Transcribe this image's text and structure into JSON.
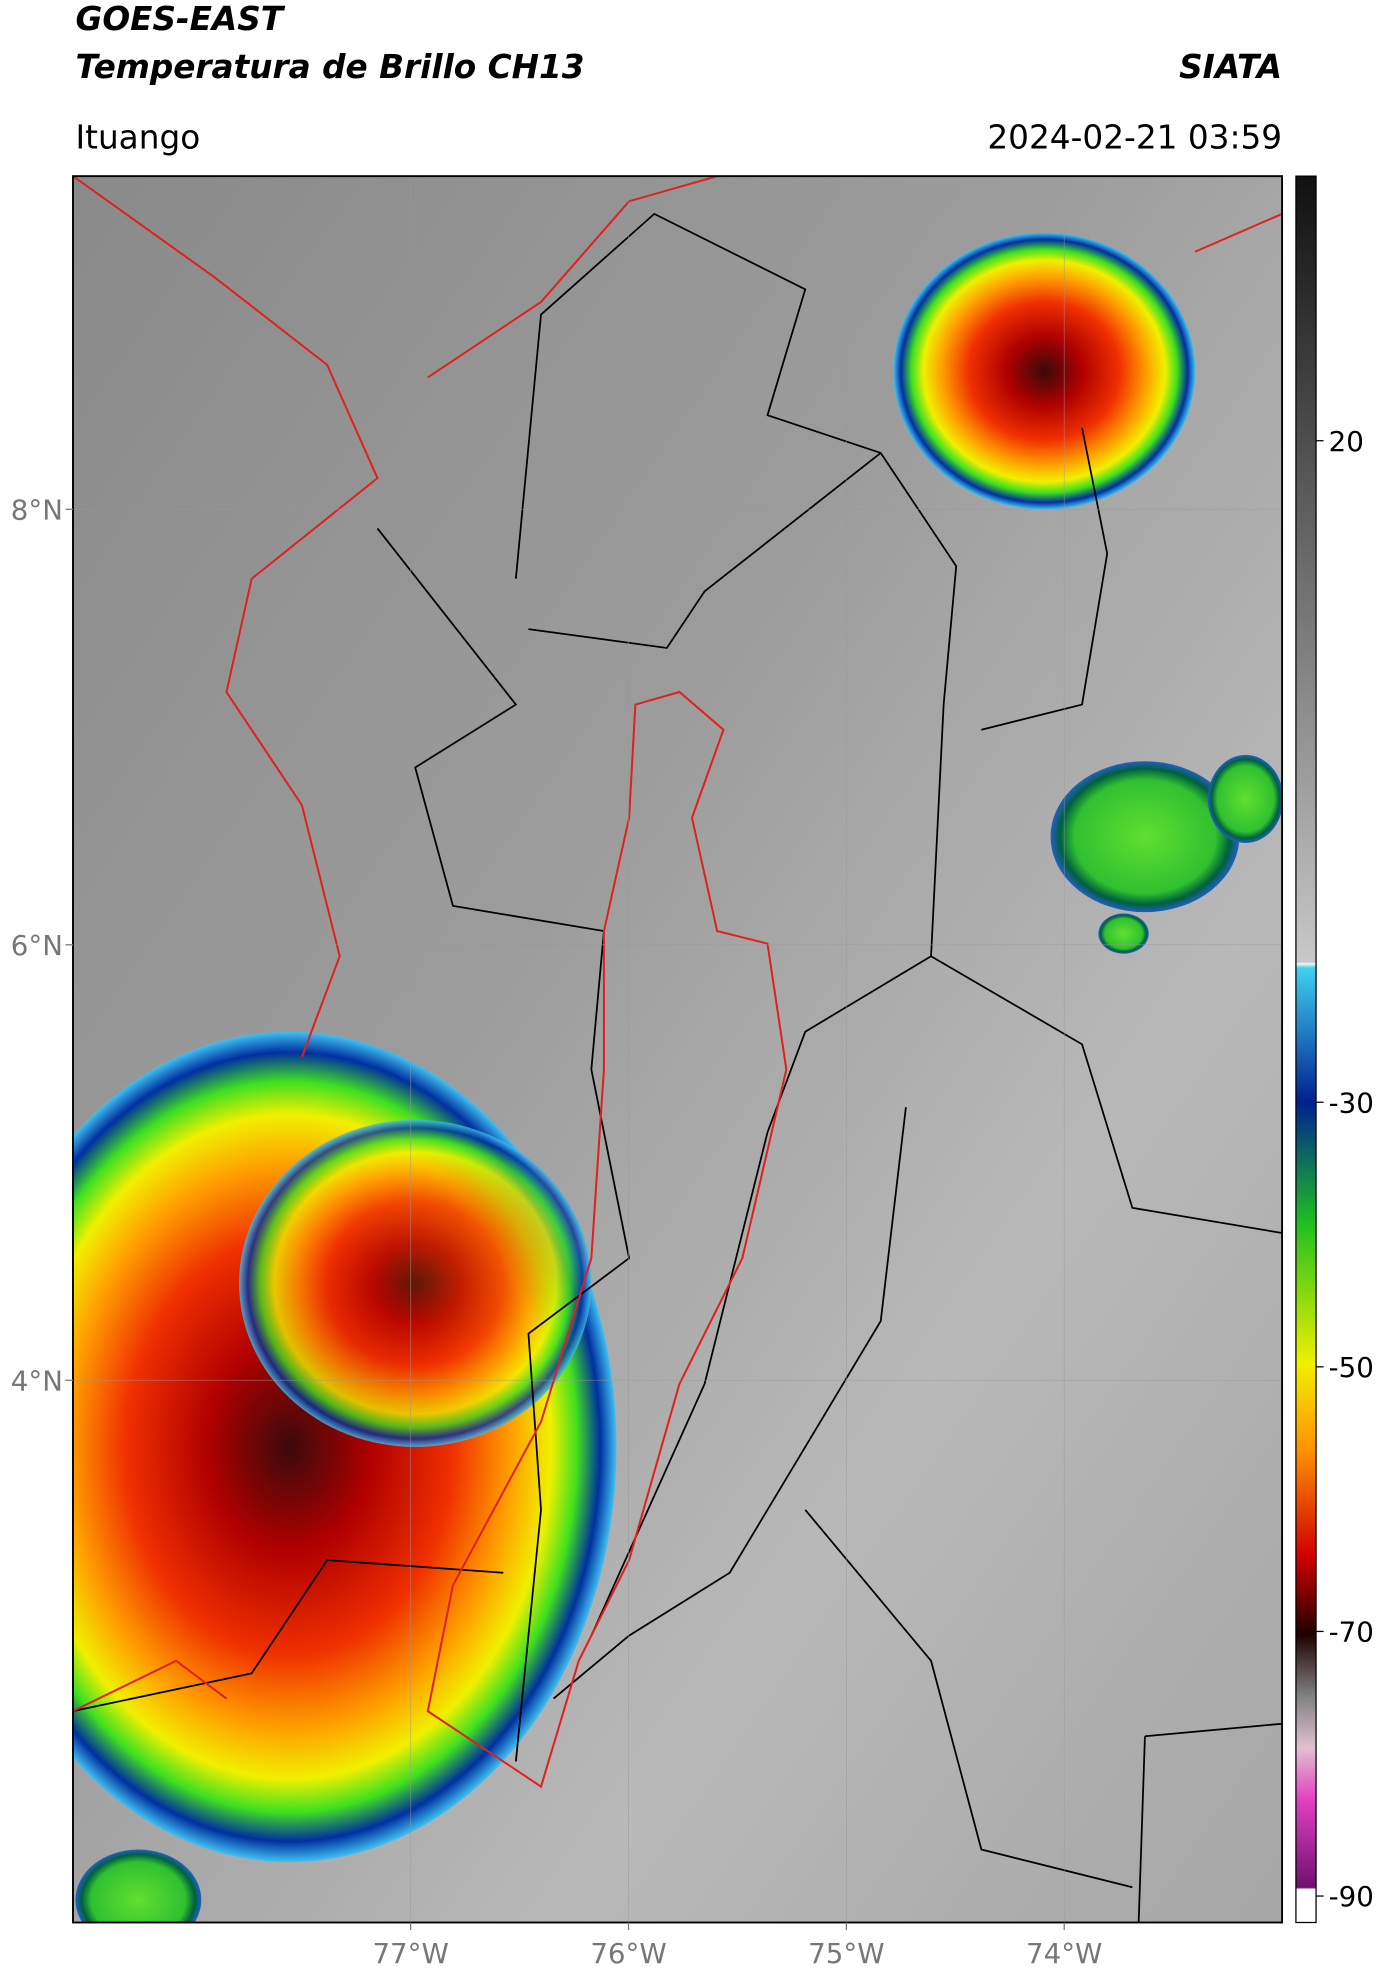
{
  "header": {
    "title": "GOES-EAST",
    "subtitle": "Temperatura de Brillo CH13",
    "agency": "SIATA",
    "location": "Ituango",
    "datetime": "2024-02-21 03:59"
  },
  "map": {
    "xlim": [
      -78.55,
      -73.0
    ],
    "ylim": [
      1.51,
      9.53
    ],
    "xticks": [
      {
        "value": -77,
        "label": "77°W"
      },
      {
        "value": -76,
        "label": "76°W"
      },
      {
        "value": -75,
        "label": "75°W"
      },
      {
        "value": -74,
        "label": "74°W"
      }
    ],
    "yticks": [
      {
        "value": 8,
        "label": "8°N"
      },
      {
        "value": 6,
        "label": "6°N"
      },
      {
        "value": 4,
        "label": "4°N"
      }
    ]
  },
  "colorbar": {
    "range": [
      40,
      -92
    ],
    "ticks": [
      20,
      -30,
      -50,
      -70,
      -90
    ]
  }
}
